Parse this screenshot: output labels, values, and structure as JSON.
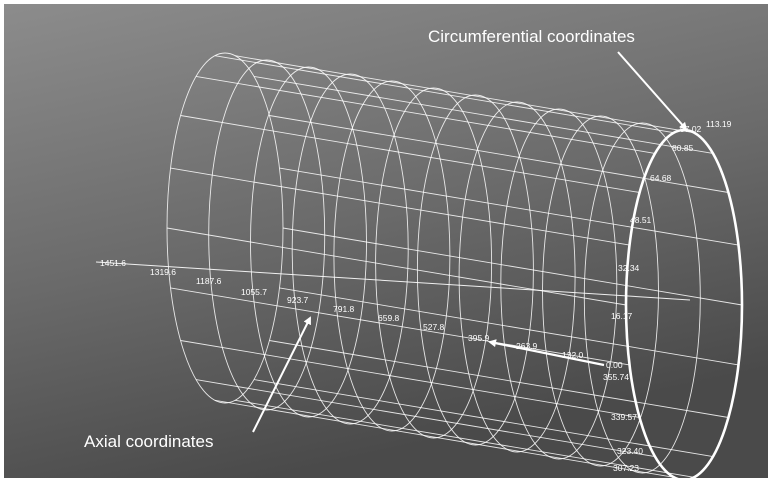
{
  "annotations": {
    "circumferential": "Circumferential coordinates",
    "axial": "Axial coordinates"
  },
  "axial_labels": [
    "1451.6",
    "1319.6",
    "1187.6",
    "1055.7",
    "923.7",
    "791.8",
    "659.8",
    "527.8",
    "395.9",
    "263.9",
    "132.0",
    "0.00"
  ],
  "circumferential_labels": [
    "113.19",
    "97.02",
    "80.85",
    "64.68",
    "48.51",
    "32.34",
    "16.17",
    "355.74",
    "339.57",
    "323.40",
    "307.23"
  ],
  "colors": {
    "background_light": "#8a8a8a",
    "background_dark": "#4a4a4a",
    "lines": "#ffffff"
  }
}
